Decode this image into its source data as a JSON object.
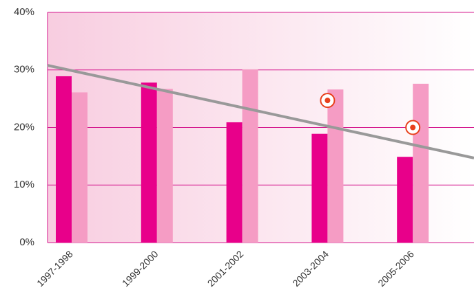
{
  "chart_data": {
    "type": "bar",
    "categories": [
      "1997-1998",
      "1999-2000",
      "2001-2002",
      "2003-2004",
      "2005-2006"
    ],
    "series": [
      {
        "color": "#e8008a",
        "values": [
          28.9,
          27.8,
          20.9,
          18.9,
          14.9
        ]
      },
      {
        "color": "#f59cc4",
        "values": [
          26.1,
          26.7,
          30.1,
          26.6,
          27.6
        ]
      }
    ],
    "markers": {
      "color": "#e8401c",
      "values": [
        null,
        null,
        null,
        24.7,
        20.0
      ]
    },
    "trendline": {
      "color": "#999999",
      "values": [
        30.8,
        14.7
      ]
    },
    "ylim": [
      0,
      40
    ],
    "yticks": [
      {
        "value": 0,
        "label": "0%"
      },
      {
        "value": 10,
        "label": "10%"
      },
      {
        "value": 20,
        "label": "20%"
      },
      {
        "value": 30,
        "label": "30%"
      },
      {
        "value": 40,
        "label": "40%"
      }
    ],
    "grid": true
  }
}
